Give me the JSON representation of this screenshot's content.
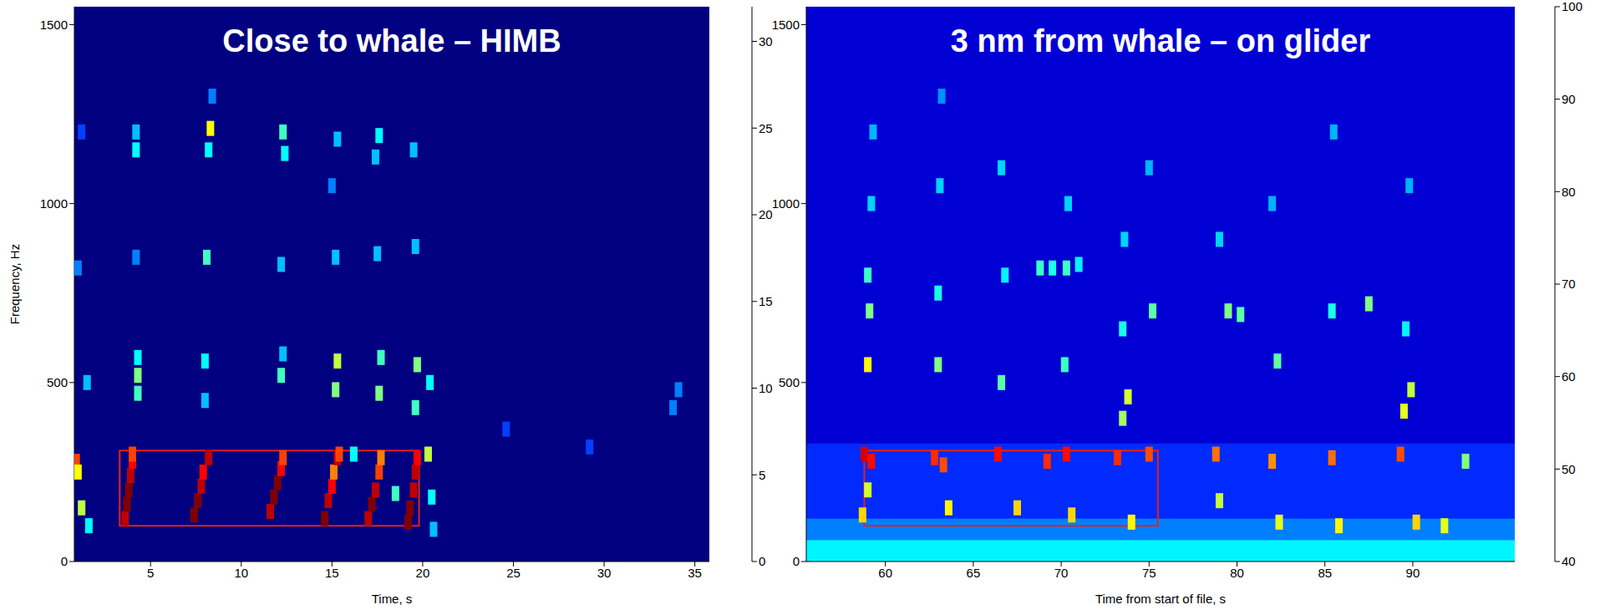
{
  "chart_data": [
    {
      "type": "heatmap",
      "title": "Close to whale – HIMB",
      "xlabel": "Time, s",
      "ylabel": "Frequency, Hz",
      "xlim": [
        0.8,
        35.8
      ],
      "xticks": [
        5,
        10,
        15,
        20,
        25,
        30,
        35
      ],
      "ylim": [
        0,
        1550
      ],
      "yticks": [
        0,
        500,
        1000,
        1500
      ],
      "colorbar": {
        "range": [
          0,
          32
        ],
        "ticks": [
          0,
          5,
          10,
          15,
          20,
          25,
          30
        ]
      },
      "background": 0,
      "bands": [],
      "cells": [
        [
          3.6,
          120,
          30
        ],
        [
          3.7,
          160,
          32
        ],
        [
          3.8,
          200,
          32
        ],
        [
          3.9,
          240,
          30
        ],
        [
          4.0,
          280,
          28
        ],
        [
          4.0,
          300,
          26
        ],
        [
          4.3,
          470,
          14
        ],
        [
          4.3,
          520,
          16
        ],
        [
          4.3,
          570,
          12
        ],
        [
          4.2,
          850,
          8
        ],
        [
          4.2,
          1150,
          12
        ],
        [
          4.2,
          1200,
          10
        ],
        [
          7.4,
          130,
          32
        ],
        [
          7.6,
          170,
          32
        ],
        [
          7.8,
          210,
          30
        ],
        [
          7.9,
          250,
          28
        ],
        [
          8.2,
          290,
          30
        ],
        [
          8.0,
          450,
          10
        ],
        [
          8.0,
          560,
          12
        ],
        [
          8.1,
          850,
          14
        ],
        [
          8.2,
          1150,
          12
        ],
        [
          8.3,
          1210,
          20
        ],
        [
          8.4,
          1300,
          8
        ],
        [
          11.6,
          140,
          30
        ],
        [
          11.8,
          180,
          32
        ],
        [
          12.0,
          220,
          32
        ],
        [
          12.2,
          260,
          28
        ],
        [
          12.3,
          290,
          26
        ],
        [
          12.2,
          520,
          14
        ],
        [
          12.3,
          580,
          10
        ],
        [
          12.2,
          830,
          10
        ],
        [
          12.4,
          1140,
          12
        ],
        [
          12.3,
          1200,
          14
        ],
        [
          14.6,
          120,
          32
        ],
        [
          14.8,
          170,
          30
        ],
        [
          15.0,
          210,
          28
        ],
        [
          15.1,
          250,
          24
        ],
        [
          15.3,
          290,
          30
        ],
        [
          15.4,
          300,
          26
        ],
        [
          15.2,
          480,
          16
        ],
        [
          15.3,
          560,
          18
        ],
        [
          15.2,
          850,
          10
        ],
        [
          15.0,
          1050,
          8
        ],
        [
          15.3,
          1180,
          10
        ],
        [
          17.0,
          120,
          30
        ],
        [
          17.2,
          160,
          32
        ],
        [
          17.4,
          200,
          30
        ],
        [
          17.6,
          250,
          26
        ],
        [
          17.7,
          290,
          24
        ],
        [
          17.6,
          470,
          16
        ],
        [
          17.7,
          570,
          14
        ],
        [
          17.5,
          860,
          10
        ],
        [
          17.4,
          1130,
          10
        ],
        [
          17.6,
          1190,
          12
        ],
        [
          19.2,
          110,
          32
        ],
        [
          19.3,
          150,
          32
        ],
        [
          19.5,
          200,
          30
        ],
        [
          19.6,
          250,
          30
        ],
        [
          19.7,
          290,
          28
        ],
        [
          19.6,
          430,
          14
        ],
        [
          19.7,
          550,
          16
        ],
        [
          19.6,
          880,
          10
        ],
        [
          19.5,
          1150,
          10
        ],
        [
          20.3,
          300,
          18
        ],
        [
          20.5,
          180,
          12
        ],
        [
          20.6,
          90,
          10
        ],
        [
          20.4,
          500,
          12
        ],
        [
          0.9,
          280,
          26
        ],
        [
          1.0,
          250,
          20
        ],
        [
          1.2,
          150,
          18
        ],
        [
          1.6,
          100,
          12
        ],
        [
          1.5,
          500,
          10
        ],
        [
          1.0,
          820,
          8
        ],
        [
          1.2,
          1200,
          6
        ],
        [
          18.5,
          190,
          14
        ],
        [
          16.2,
          300,
          12
        ],
        [
          24.6,
          370,
          6
        ],
        [
          29.2,
          320,
          6
        ],
        [
          33.8,
          430,
          8
        ],
        [
          34.1,
          480,
          8
        ]
      ],
      "boxes": [
        {
          "x": [
            3.3,
            19.8
          ],
          "y": [
            100,
            310
          ]
        }
      ]
    },
    {
      "type": "heatmap",
      "title": "3 nm from whale – on glider",
      "xlabel": "Time from start of file, s",
      "xlim": [
        55.5,
        95.8
      ],
      "xticks": [
        60,
        65,
        70,
        75,
        80,
        85,
        90
      ],
      "ylim": [
        0,
        1550
      ],
      "yticks": [
        0,
        500,
        1000,
        1500
      ],
      "colorbar": {
        "range": [
          40,
          100
        ],
        "ticks": [
          40,
          50,
          60,
          70,
          80,
          90,
          100
        ]
      },
      "background": 45,
      "bands": [
        {
          "y": [
            120,
            330
          ],
          "value": 50
        },
        {
          "y": [
            60,
            120
          ],
          "value": 55
        },
        {
          "y": [
            0,
            60
          ],
          "value": 62
        }
      ],
      "cells": [
        [
          58.8,
          300,
          95
        ],
        [
          59.2,
          280,
          92
        ],
        [
          58.7,
          130,
          80
        ],
        [
          59.0,
          200,
          75
        ],
        [
          59.0,
          550,
          78
        ],
        [
          59.1,
          700,
          70
        ],
        [
          59.0,
          800,
          66
        ],
        [
          59.2,
          1000,
          60
        ],
        [
          59.3,
          1200,
          58
        ],
        [
          62.8,
          290,
          90
        ],
        [
          63.3,
          270,
          88
        ],
        [
          63.6,
          150,
          78
        ],
        [
          63.0,
          550,
          70
        ],
        [
          63.0,
          750,
          64
        ],
        [
          63.1,
          1050,
          60
        ],
        [
          63.2,
          1300,
          56
        ],
        [
          66.4,
          300,
          92
        ],
        [
          67.5,
          150,
          80
        ],
        [
          66.6,
          500,
          68
        ],
        [
          66.8,
          800,
          62
        ],
        [
          66.6,
          1100,
          60
        ],
        [
          68.8,
          820,
          66
        ],
        [
          69.5,
          820,
          64
        ],
        [
          70.3,
          820,
          66
        ],
        [
          71.0,
          830,
          62
        ],
        [
          69.2,
          280,
          90
        ],
        [
          70.3,
          300,
          92
        ],
        [
          70.6,
          130,
          80
        ],
        [
          70.2,
          550,
          66
        ],
        [
          70.4,
          1000,
          60
        ],
        [
          73.2,
          290,
          90
        ],
        [
          73.5,
          400,
          72
        ],
        [
          73.8,
          460,
          75
        ],
        [
          74.0,
          110,
          78
        ],
        [
          73.5,
          650,
          64
        ],
        [
          73.6,
          900,
          60
        ],
        [
          75.0,
          300,
          88
        ],
        [
          75.2,
          700,
          68
        ],
        [
          75.0,
          1100,
          58
        ],
        [
          78.8,
          300,
          86
        ],
        [
          79.0,
          170,
          74
        ],
        [
          79.5,
          700,
          70
        ],
        [
          80.2,
          690,
          68
        ],
        [
          79.0,
          900,
          60
        ],
        [
          82.0,
          280,
          84
        ],
        [
          82.4,
          110,
          76
        ],
        [
          82.3,
          560,
          68
        ],
        [
          82.0,
          1000,
          58
        ],
        [
          85.4,
          290,
          86
        ],
        [
          85.8,
          100,
          78
        ],
        [
          85.4,
          700,
          64
        ],
        [
          85.5,
          1200,
          58
        ],
        [
          89.3,
          300,
          88
        ],
        [
          89.5,
          420,
          76
        ],
        [
          89.9,
          480,
          74
        ],
        [
          90.2,
          110,
          80
        ],
        [
          89.6,
          650,
          62
        ],
        [
          89.8,
          1050,
          58
        ],
        [
          91.8,
          100,
          76
        ],
        [
          87.5,
          720,
          70
        ],
        [
          93.0,
          280,
          70
        ]
      ],
      "boxes": [
        {
          "x": [
            58.8,
            75.5
          ],
          "y": [
            100,
            310
          ]
        }
      ]
    }
  ]
}
